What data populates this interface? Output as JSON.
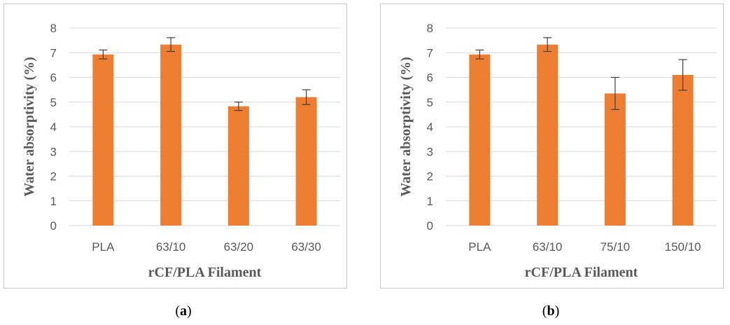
{
  "colors": {
    "bar": "#ED7D31",
    "grid": "#D9D9D9",
    "text": "#595959",
    "error_bar": "#404040"
  },
  "chart_data": [
    {
      "type": "bar",
      "panel": "a",
      "categories": [
        "PLA",
        "63/10",
        "63/20",
        "63/30"
      ],
      "values": [
        6.93,
        7.33,
        4.83,
        5.2
      ],
      "error": [
        0.18,
        0.28,
        0.17,
        0.3
      ],
      "xlabel": "rCF/PLA Filament",
      "ylabel": "Water absorptivity (%)",
      "ylim": [
        0,
        8
      ],
      "yticks": [
        "0",
        "1",
        "2",
        "3",
        "4",
        "5",
        "6",
        "7",
        "8"
      ],
      "grid": true,
      "legend": "none"
    },
    {
      "type": "bar",
      "panel": "b",
      "categories": [
        "PLA",
        "63/10",
        "75/10",
        "150/10"
      ],
      "values": [
        6.93,
        7.33,
        5.35,
        6.1
      ],
      "error": [
        0.18,
        0.28,
        0.65,
        0.62
      ],
      "xlabel": "rCF/PLA Filament",
      "ylabel": "Water absorptivity (%)",
      "ylim": [
        0,
        8
      ],
      "yticks": [
        "0",
        "1",
        "2",
        "3",
        "4",
        "5",
        "6",
        "7",
        "8"
      ],
      "grid": true,
      "legend": "none"
    }
  ],
  "captions": {
    "a_open": "(",
    "a_letter": "a",
    "a_close": ")",
    "b_open": "(",
    "b_letter": "b",
    "b_close": ")"
  }
}
